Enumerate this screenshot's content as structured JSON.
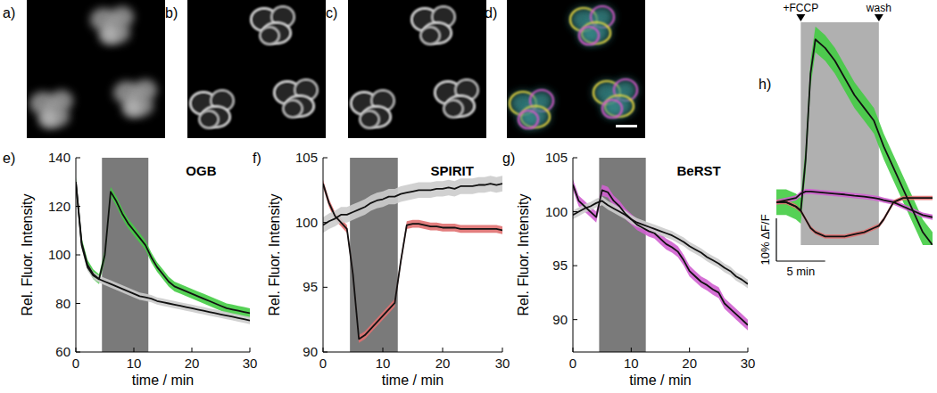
{
  "image_panels": [
    {
      "label": "a)"
    },
    {
      "label": "b)"
    },
    {
      "label": "c)"
    },
    {
      "label": "d)"
    }
  ],
  "chart_data": [
    {
      "type": "line",
      "panel_label": "e)",
      "title": "OGB",
      "x_label": "time / min",
      "y_label": "Rel. Fluor. Intensity",
      "x": [
        0,
        1,
        2,
        3,
        4,
        5,
        6,
        7,
        8,
        9,
        10,
        11,
        12,
        13,
        14,
        15,
        16,
        17,
        18,
        19,
        20,
        21,
        22,
        23,
        24,
        25,
        26,
        27,
        28,
        29,
        30
      ],
      "xlim": [
        0,
        30
      ],
      "xticks": [
        0,
        10,
        20,
        30
      ],
      "ylim": [
        60,
        140
      ],
      "yticks": [
        60,
        80,
        100,
        120,
        140
      ],
      "shaded_region": [
        4.5,
        12.5
      ],
      "series": [
        {
          "color": "#44cc44",
          "error": 2,
          "values": [
            130,
            105,
            96,
            92,
            90,
            100,
            126,
            122,
            117,
            113,
            110,
            107,
            104,
            99,
            95,
            92,
            89,
            87,
            86,
            85,
            84,
            83,
            82,
            81,
            80,
            79,
            78,
            77.5,
            77,
            76.5,
            76
          ]
        },
        {
          "color": "#cccccc",
          "error": 1.5,
          "values": [
            130,
            104,
            95,
            91.5,
            90,
            89,
            88,
            87,
            86,
            85,
            84,
            83,
            82.5,
            82,
            81,
            80.5,
            80,
            79.5,
            79,
            78.5,
            78,
            77.5,
            77,
            76.5,
            76,
            75.5,
            75,
            74.5,
            74,
            73.5,
            73
          ]
        }
      ]
    },
    {
      "type": "line",
      "panel_label": "f)",
      "title": "SPIRIT",
      "x_label": "time / min",
      "y_label": "Rel. Fluor. Intensity",
      "x": [
        0,
        1,
        2,
        3,
        4,
        5,
        6,
        7,
        8,
        9,
        10,
        11,
        12,
        13,
        14,
        15,
        16,
        17,
        18,
        19,
        20,
        21,
        22,
        23,
        24,
        25,
        26,
        27,
        28,
        29,
        30
      ],
      "xlim": [
        0,
        30
      ],
      "xticks": [
        0,
        10,
        20,
        30
      ],
      "ylim": [
        90,
        105
      ],
      "yticks": [
        90,
        95,
        100,
        105
      ],
      "shaded_region": [
        4.5,
        12.5
      ],
      "series": [
        {
          "color": "#e07070",
          "error": 0.3,
          "values": [
            103,
            101.5,
            100.5,
            100,
            99.5,
            96,
            91,
            91.3,
            91.8,
            92.3,
            92.8,
            93.3,
            93.8,
            97,
            99.8,
            99.9,
            99.9,
            99.8,
            99.7,
            99.7,
            99.6,
            99.6,
            99.6,
            99.5,
            99.5,
            99.5,
            99.5,
            99.5,
            99.5,
            99.5,
            99.4
          ]
        },
        {
          "color": "#cccccc",
          "error": 0.6,
          "values": [
            99.8,
            100.1,
            100.3,
            100.6,
            100.6,
            100.8,
            101,
            101.2,
            101.5,
            101.7,
            101.8,
            102,
            102,
            102.2,
            102.3,
            102.4,
            102.5,
            102.5,
            102.5,
            102.6,
            102.6,
            102.7,
            102.6,
            102.8,
            102.8,
            102.8,
            102.9,
            102.9,
            103,
            102.9,
            103
          ]
        }
      ]
    },
    {
      "type": "line",
      "panel_label": "g)",
      "title": "BeRST",
      "x_label": "time / min",
      "y_label": "Rel. Fluor. Intensity",
      "x": [
        0,
        1,
        2,
        3,
        4,
        5,
        6,
        7,
        8,
        9,
        10,
        11,
        12,
        13,
        14,
        15,
        16,
        17,
        18,
        19,
        20,
        21,
        22,
        23,
        24,
        25,
        26,
        27,
        28,
        29,
        30
      ],
      "xlim": [
        0,
        30
      ],
      "xticks": [
        0,
        10,
        20,
        30
      ],
      "ylim": [
        87,
        105
      ],
      "yticks": [
        90,
        95,
        100,
        105
      ],
      "shaded_region": [
        4.5,
        12.5
      ],
      "series": [
        {
          "color": "#d060d0",
          "error": 0.5,
          "values": [
            102.5,
            101,
            100.5,
            100,
            99.5,
            102,
            101.8,
            101,
            100.5,
            99.8,
            99.3,
            98.8,
            98.5,
            98.2,
            98,
            97.5,
            97,
            96.7,
            96.3,
            95.5,
            94.5,
            94,
            93.5,
            93.2,
            92.8,
            92.5,
            91.5,
            91,
            90.5,
            90,
            89.5
          ]
        },
        {
          "color": "#cccccc",
          "error": 0.4,
          "values": [
            99.7,
            100,
            100.3,
            100.5,
            100.8,
            101,
            100.6,
            100.3,
            100,
            99.7,
            99.3,
            99,
            98.8,
            98.6,
            98.4,
            98.2,
            98,
            97.8,
            97.5,
            97.2,
            96.8,
            96.5,
            96.2,
            95.8,
            95.5,
            95.2,
            94.8,
            94.5,
            94,
            93.7,
            93.3
          ]
        }
      ]
    },
    {
      "type": "line",
      "panel_label": "h)",
      "tick_labels": false,
      "x": [
        0,
        1,
        2,
        2.5,
        3,
        3.5,
        4,
        5,
        6,
        7,
        8,
        9,
        10,
        10.5,
        11,
        12,
        13,
        14,
        15,
        16
      ],
      "xlim": [
        0,
        16
      ],
      "ylim": [
        -10,
        42
      ],
      "annotations": [
        {
          "text": "+FCCP",
          "x": 2.5
        },
        {
          "text": "wash",
          "x": 10.5
        }
      ],
      "scale_bars": {
        "x": {
          "value": 5,
          "label": "5 min"
        },
        "y": {
          "value": 10,
          "label": "10% ΔF/F"
        }
      },
      "series": [
        {
          "color": "#44cc44",
          "error": 3,
          "values": [
            0,
            0,
            -1,
            -2,
            10,
            30,
            38,
            36,
            33,
            29,
            25,
            22,
            19,
            16,
            13,
            8,
            3,
            -2,
            -7,
            -10
          ]
        },
        {
          "color": "#d060d0",
          "error": 0.6,
          "values": [
            0,
            0.5,
            1,
            2,
            2.5,
            2.5,
            2.4,
            2.2,
            2,
            1.8,
            1.5,
            1.3,
            1,
            0.8,
            0.5,
            0,
            -1,
            -2,
            -3,
            -3.5
          ]
        },
        {
          "color": "#e07070",
          "error": 0.5,
          "values": [
            0,
            0,
            -1,
            -2,
            -4,
            -6,
            -7,
            -8,
            -8,
            -8,
            -7.5,
            -7,
            -6,
            -5.5,
            -4,
            0,
            1,
            1,
            1,
            1
          ]
        }
      ]
    }
  ]
}
